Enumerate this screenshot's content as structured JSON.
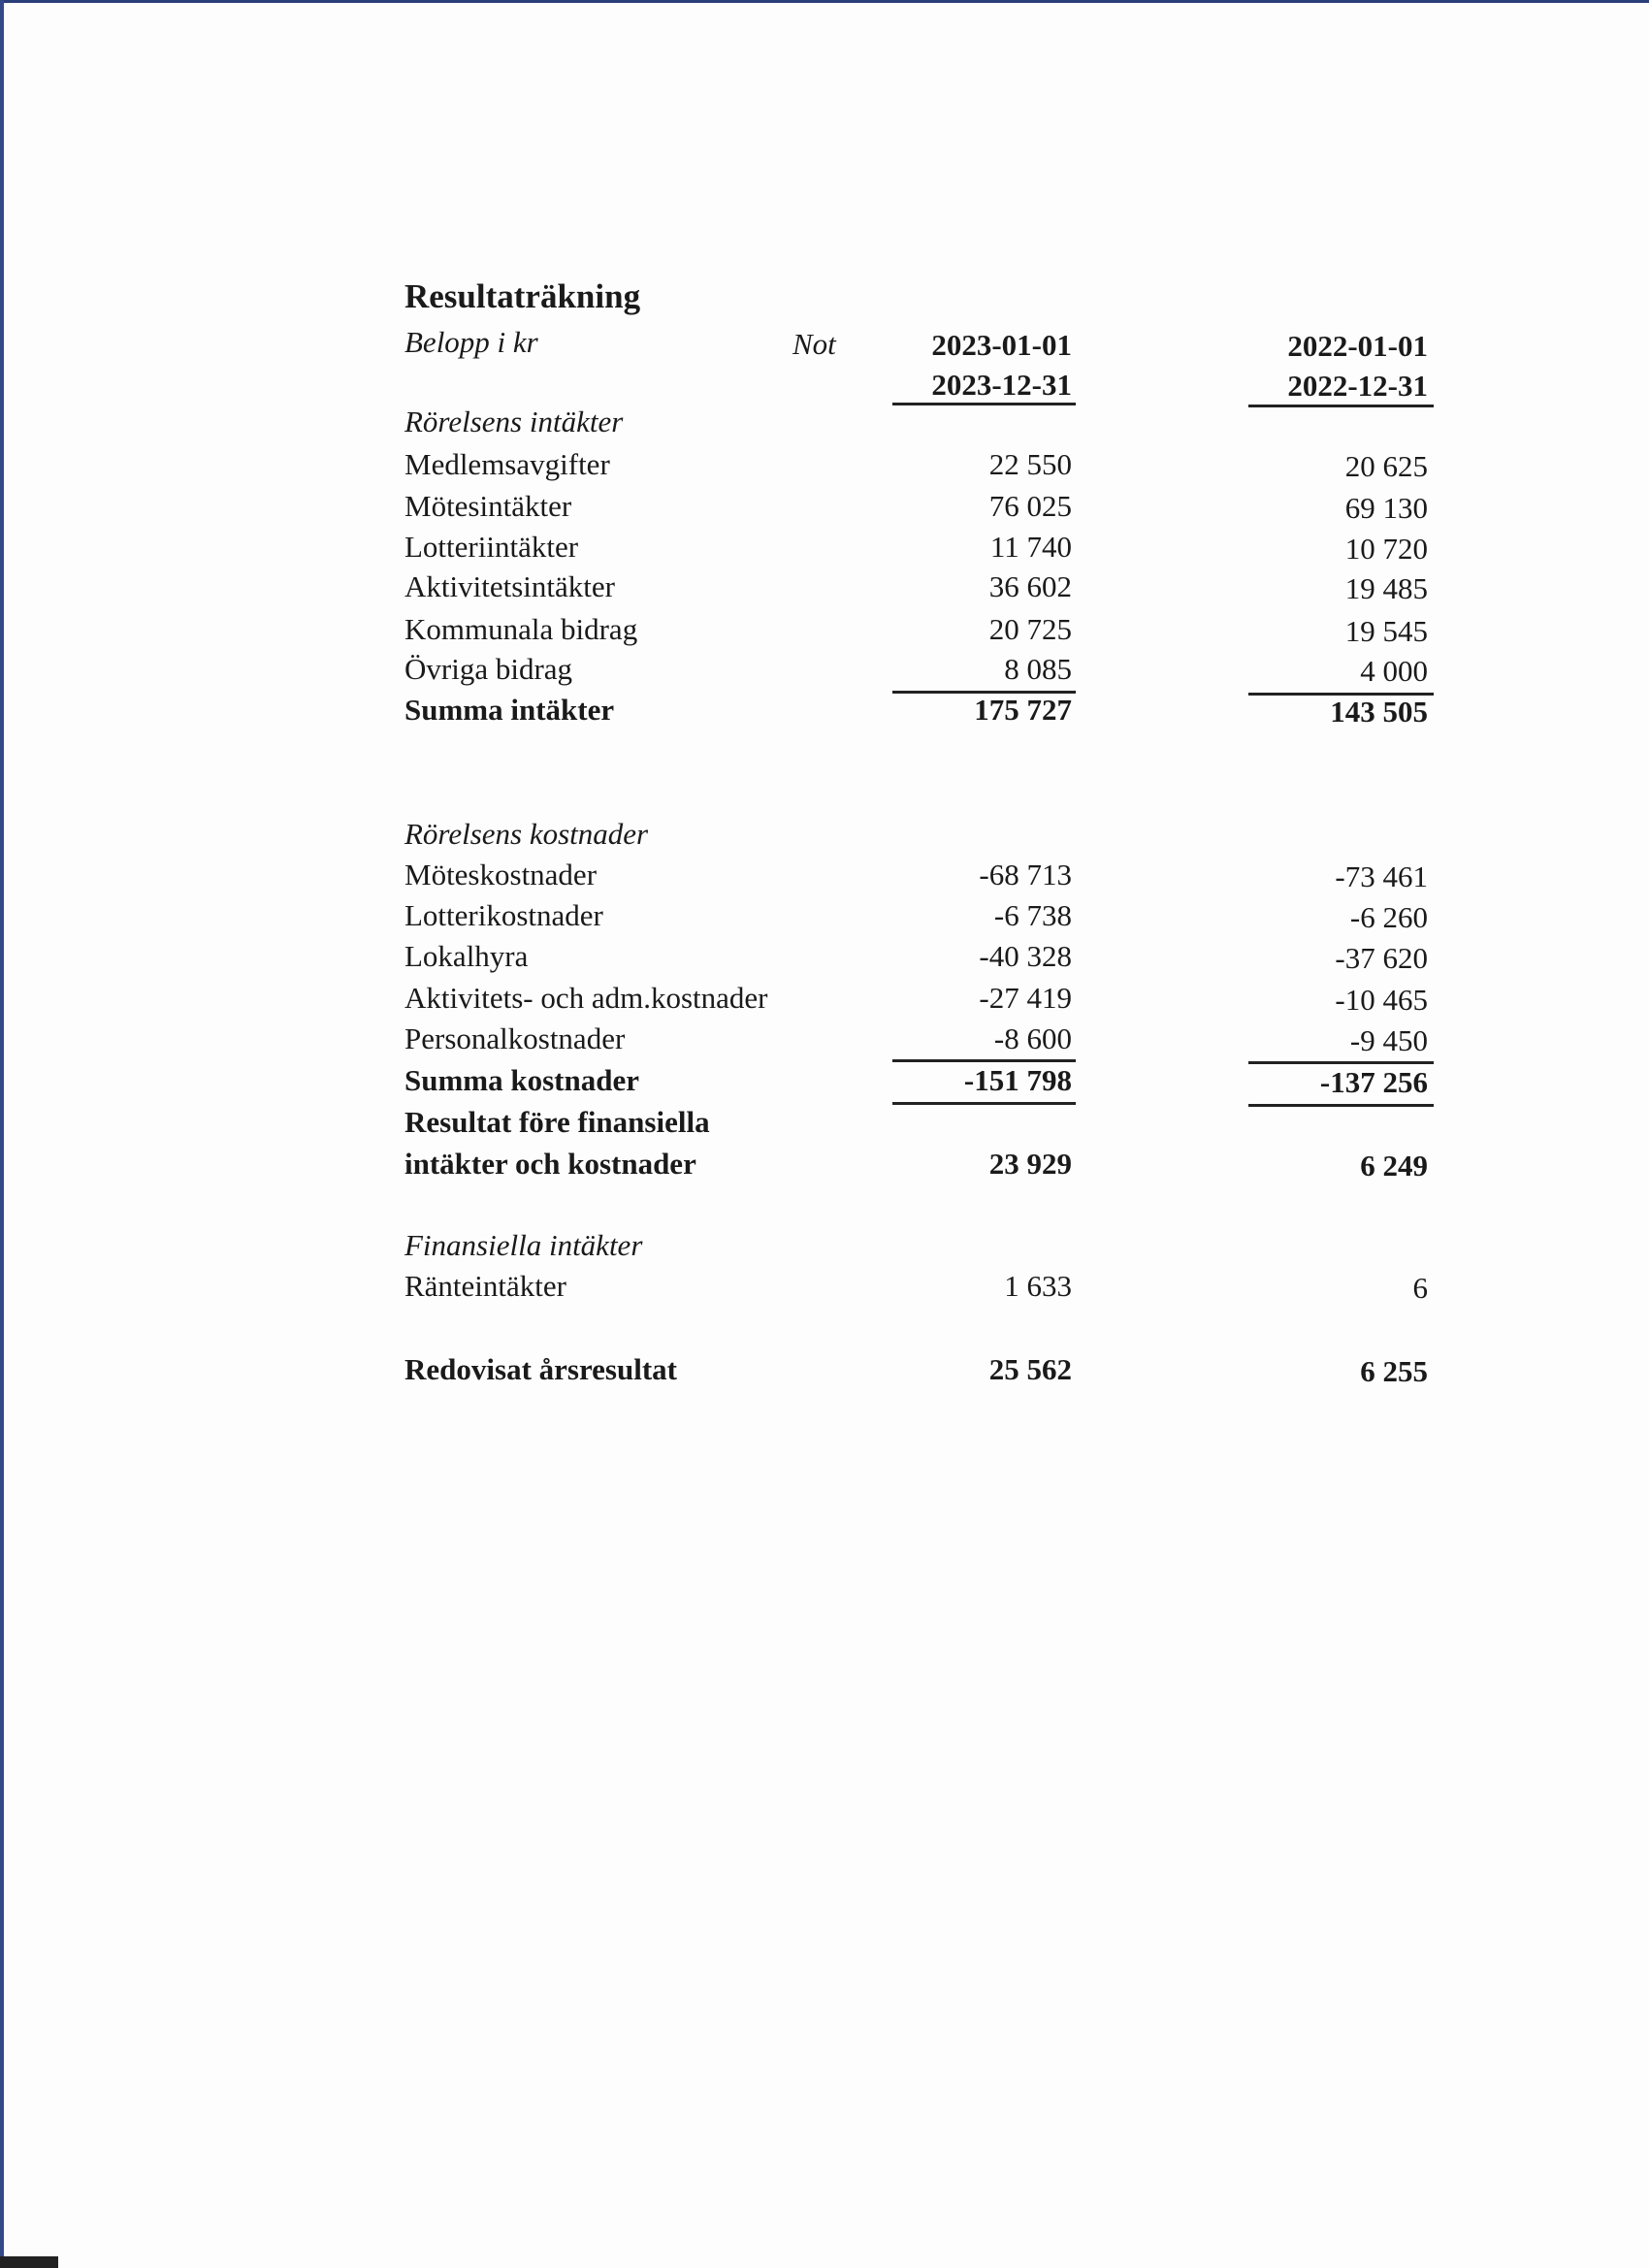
{
  "title": "Resultaträkning",
  "header": {
    "unit_label": "Belopp i kr",
    "note_label": "Not",
    "period_current_start": "2023-01-01",
    "period_current_end": "2023-12-31",
    "period_prior_start": "2022-01-01",
    "period_prior_end": "2022-12-31"
  },
  "rows": [
    {
      "label": "Rörelsens intäkter",
      "style": "section"
    },
    {
      "label": "Medlemsavgifter",
      "current": "22 550",
      "prior": "20 625"
    },
    {
      "label": "Mötesintäkter",
      "current": "76 025",
      "prior": "69 130"
    },
    {
      "label": "Lotteriintäkter",
      "current": "11 740",
      "prior": "10 720"
    },
    {
      "label": "Aktivitetsintäkter",
      "current": "36 602",
      "prior": "19 485"
    },
    {
      "label": "Kommunala bidrag",
      "current": "20 725",
      "prior": "19 545"
    },
    {
      "label": "Övriga bidrag",
      "current": "8 085",
      "prior": "4 000"
    },
    {
      "label": "Summa intäkter",
      "current": "175 727",
      "prior": "143 505",
      "style": "total"
    },
    {
      "label": "Rörelsens kostnader",
      "style": "section"
    },
    {
      "label": "Möteskostnader",
      "current": "-68 713",
      "prior": "-73 461"
    },
    {
      "label": "Lotterikostnader",
      "current": "-6 738",
      "prior": "-6 260"
    },
    {
      "label": "Lokalhyra",
      "current": "-40 328",
      "prior": "-37 620"
    },
    {
      "label": "Aktivitets- och adm.kostnader",
      "current": "-27 419",
      "prior": "-10 465"
    },
    {
      "label": "Personalkostnader",
      "current": "-8 600",
      "prior": "-9 450"
    },
    {
      "label": "Summa kostnader",
      "current": "-151 798",
      "prior": "-137 256",
      "style": "total"
    },
    {
      "label": "Resultat före finansiella",
      "style": "total"
    },
    {
      "label": "intäkter och kostnader",
      "current": "23 929",
      "prior": "6 249",
      "style": "total"
    },
    {
      "label": "Finansiella intäkter",
      "style": "section"
    },
    {
      "label": "Ränteintäkter",
      "current": "1 633",
      "prior": "6"
    },
    {
      "label": "Redovisat årsresultat",
      "current": "25 562",
      "prior": "6 255",
      "style": "total"
    }
  ]
}
